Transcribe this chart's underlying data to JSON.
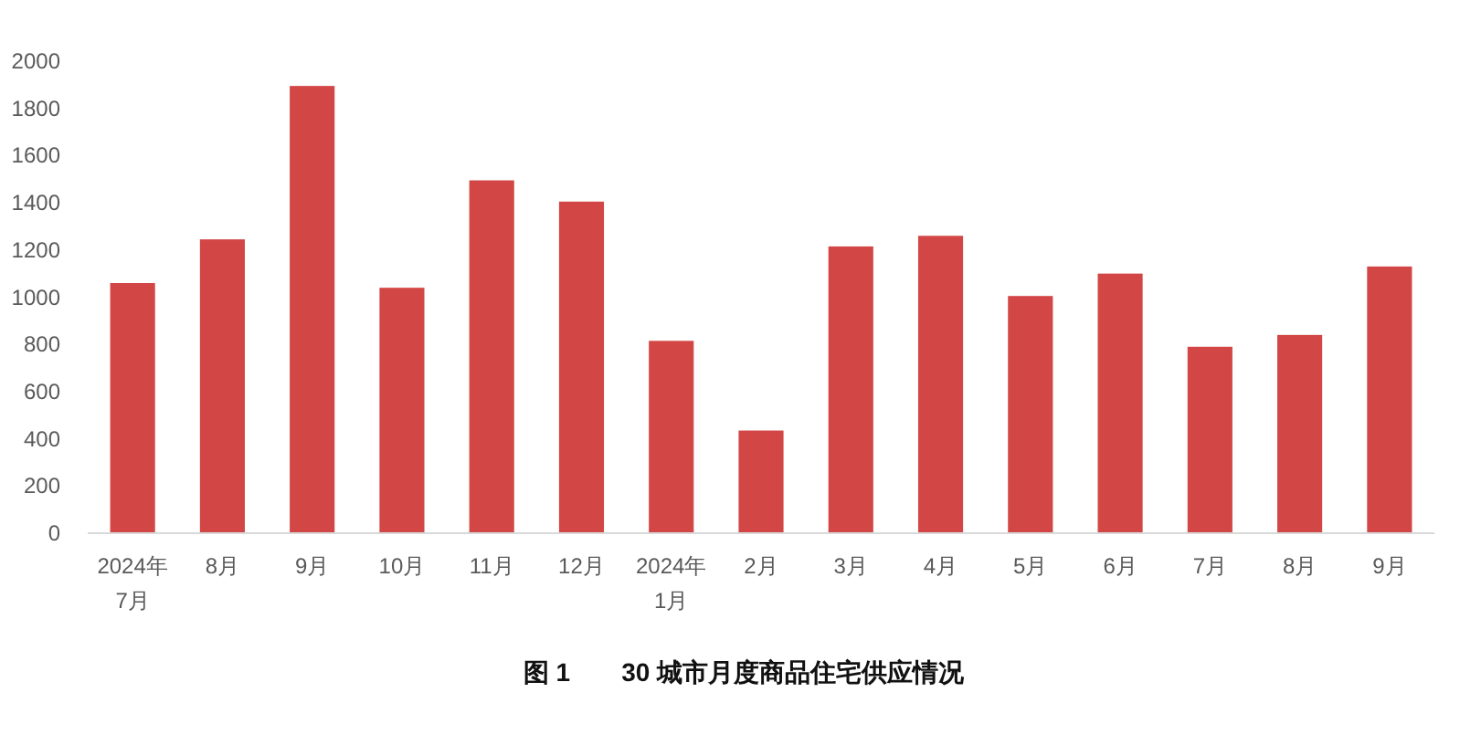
{
  "chart_data": {
    "type": "bar",
    "title": "图 1　　30 城市月度商品住宅供应情况",
    "categories": [
      "2024年\n7月",
      "8月",
      "9月",
      "10月",
      "11月",
      "12月",
      "2024年\n1月",
      "2月",
      "3月",
      "4月",
      "5月",
      "6月",
      "7月",
      "8月",
      "9月"
    ],
    "values": [
      1060,
      1245,
      1895,
      1040,
      1495,
      1405,
      815,
      435,
      1215,
      1260,
      1005,
      1100,
      790,
      840,
      1130
    ],
    "color": "#d24646",
    "ylim": [
      0,
      2000
    ],
    "yticks": [
      0,
      200,
      400,
      600,
      800,
      1000,
      1200,
      1400,
      1600,
      1800,
      2000
    ],
    "grid": false
  }
}
